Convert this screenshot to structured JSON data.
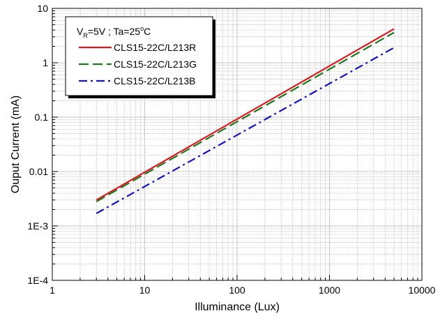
{
  "chart_data": {
    "type": "line",
    "xlabel": "Illuminance (Lux)",
    "ylabel": "Ouput Current (mA)",
    "x_scale": "log",
    "y_scale": "log",
    "xlim": [
      1,
      10000
    ],
    "ylim": [
      0.0001,
      10
    ],
    "x_ticks": [
      1,
      10,
      100,
      1000,
      10000
    ],
    "x_tick_labels": [
      "1",
      "10",
      "100",
      "1000",
      "10000"
    ],
    "y_ticks": [
      0.0001,
      0.001,
      0.01,
      0.1,
      1,
      10
    ],
    "y_tick_labels": [
      "1E-4",
      "1E-3",
      "0.01",
      "0.1",
      "1",
      "10"
    ],
    "grid": "major and minor, dotted",
    "legend_position": "top-left",
    "condition": {
      "v": "V",
      "sub": "R",
      "rest": "=5V ; Ta=25",
      "sup": "o",
      "unit": "C"
    },
    "series": [
      {
        "name": "CLS15-22C/L213R",
        "color": "#e8141b",
        "dash": "solid",
        "x": [
          3,
          5000
        ],
        "y": [
          0.003,
          4.2
        ]
      },
      {
        "name": "CLS15-22C/L213G",
        "color": "#1a7a1a",
        "dash": "dashed",
        "x": [
          3,
          5000
        ],
        "y": [
          0.0028,
          3.6
        ]
      },
      {
        "name": "CLS15-22C/L213B",
        "color": "#1010d0",
        "dash": "dashdot",
        "x": [
          3,
          5000
        ],
        "y": [
          0.0017,
          1.9
        ]
      }
    ]
  }
}
